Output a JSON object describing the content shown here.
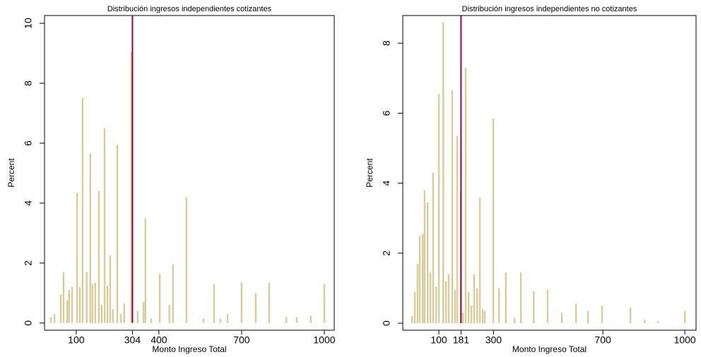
{
  "chart_data": [
    {
      "type": "bar",
      "title": "Distribución ingresos independientes cotizantes",
      "xlabel": "Monto Ingreso Total",
      "ylabel": "Percent",
      "color": "#d6cd9a",
      "vline": 304,
      "vline_color": "#a0003a",
      "x": [
        8,
        21,
        44,
        54,
        67,
        74,
        85,
        103,
        113,
        123,
        138,
        151,
        159,
        169,
        182,
        192,
        203,
        213,
        223,
        233,
        249,
        262,
        274,
        300,
        323,
        344,
        351,
        372,
        403,
        438,
        451,
        500,
        562,
        600,
        623,
        649,
        700,
        751,
        800,
        862,
        900,
        951,
        1000
      ],
      "values": [
        0.2,
        0.3,
        0.95,
        1.7,
        0.75,
        1.1,
        1.2,
        4.35,
        1.2,
        7.5,
        1.7,
        5.65,
        1.3,
        1.35,
        4.4,
        0.6,
        6.5,
        1.25,
        2.25,
        0.45,
        5.95,
        0.3,
        0.65,
        9.05,
        0.4,
        0.7,
        3.5,
        0.15,
        1.65,
        0.6,
        1.95,
        4.2,
        0.15,
        1.3,
        0.15,
        0.3,
        1.35,
        1.0,
        1.35,
        0.2,
        0.2,
        0.25,
        1.3
      ],
      "xlim": [
        -15,
        1036
      ],
      "ylim": [
        -0.24,
        10.26
      ],
      "xticks": [
        100,
        304,
        400,
        700,
        1000
      ],
      "yticks": [
        0,
        2,
        4,
        6,
        8,
        10
      ]
    },
    {
      "type": "bar",
      "title": "Distribución ingresos independientes no cotizantes",
      "xlabel": "Monto Ingreso Total",
      "ylabel": "Percent",
      "color": "#d6cd9a",
      "vline": 181,
      "vline_color": "#a0003a",
      "x": [
        2,
        12,
        22,
        30,
        41,
        48,
        59,
        69,
        79,
        90,
        100,
        116,
        126,
        136,
        149,
        159,
        167,
        180,
        188,
        198,
        209,
        219,
        229,
        240,
        250,
        260,
        268,
        299,
        320,
        345,
        377,
        400,
        447,
        498,
        550,
        602,
        646,
        697,
        801,
        853,
        902,
        1000
      ],
      "values": [
        0.2,
        0.9,
        1.7,
        2.5,
        2.55,
        3.8,
        3.45,
        1.45,
        4.3,
        1.05,
        6.55,
        8.6,
        1.2,
        1.4,
        6.65,
        0.95,
        5.35,
        3.8,
        0.3,
        7.3,
        0.9,
        0.5,
        1.4,
        1.0,
        3.6,
        0.4,
        0.35,
        5.85,
        1.0,
        1.45,
        0.15,
        1.45,
        0.92,
        0.95,
        0.3,
        0.55,
        0.35,
        0.5,
        0.45,
        0.1,
        0.05,
        0.35
      ],
      "xlim": [
        -32,
        1041
      ],
      "ylim": [
        -0.2,
        8.79
      ],
      "xticks": [
        100,
        181,
        300,
        700,
        1000
      ],
      "yticks": [
        0,
        2,
        4,
        6,
        8
      ]
    }
  ]
}
